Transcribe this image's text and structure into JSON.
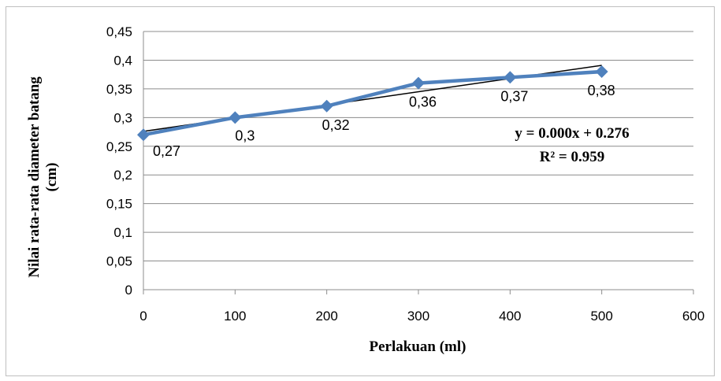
{
  "chart_data": {
    "type": "line",
    "title": "",
    "xlabel": "Perlakuan (ml)",
    "ylabel_line1": "Nilai rata-rata diameter batang",
    "ylabel_line2": "(cm)",
    "xlim": [
      0,
      600
    ],
    "ylim": [
      0,
      0.45
    ],
    "x_ticks": [
      0,
      100,
      200,
      300,
      400,
      500,
      600
    ],
    "x_tick_labels": [
      "0",
      "100",
      "200",
      "300",
      "400",
      "500",
      "600"
    ],
    "y_ticks": [
      0,
      0.05,
      0.1,
      0.15,
      0.2,
      0.25,
      0.3,
      0.35,
      0.4,
      0.45
    ],
    "y_tick_labels": [
      "0",
      "0,05",
      "0,1",
      "0,15",
      "0,2",
      "0,25",
      "0,3",
      "0,35",
      "0,4",
      "0,45"
    ],
    "grid": true,
    "series": [
      {
        "x": [
          0,
          100,
          200,
          300,
          400,
          500
        ],
        "values": [
          0.27,
          0.3,
          0.32,
          0.36,
          0.37,
          0.38
        ],
        "data_labels": [
          "0,27",
          "0,3",
          "0,32",
          "0,36",
          "0,37",
          "0,38"
        ],
        "color": "#4f81bd",
        "marker": "diamond"
      }
    ],
    "trendline": {
      "type": "linear",
      "slope": 0.00023,
      "intercept": 0.276,
      "x_range": [
        0,
        500
      ],
      "color": "#000000",
      "equation": "y = 0.000x + 0.276",
      "r_squared": "R² = 0.959"
    }
  }
}
